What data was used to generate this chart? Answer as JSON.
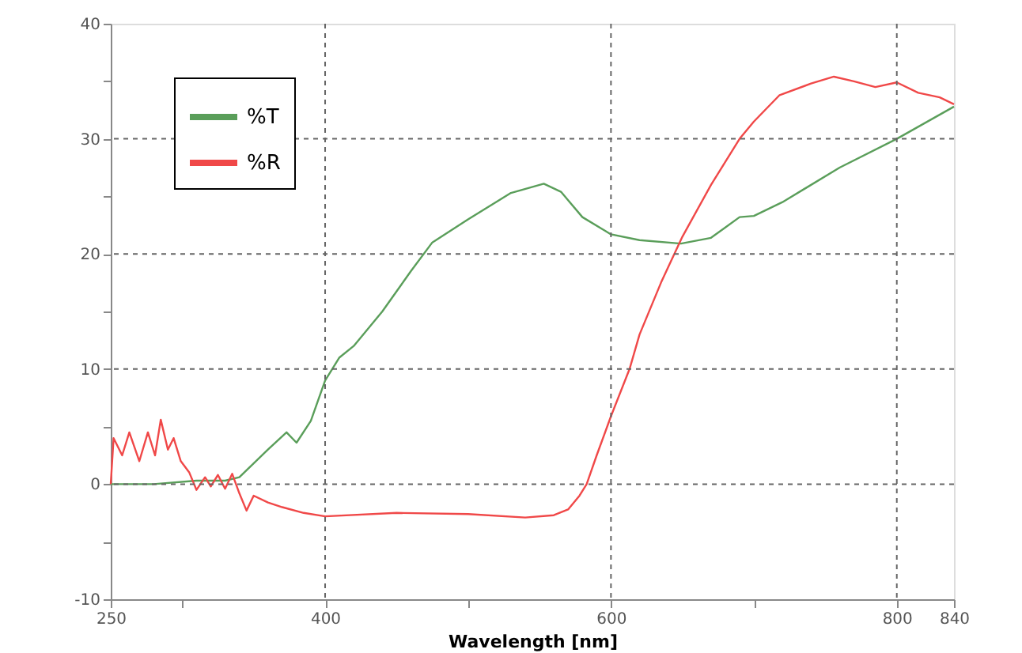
{
  "chart_data": {
    "type": "line",
    "xlabel": "Wavelength [nm]",
    "xlim": [
      250,
      840
    ],
    "ylim": [
      -10,
      40
    ],
    "xticks": [
      250,
      {
        "value": 300,
        "label": null
      },
      400,
      {
        "value": 500,
        "label": null
      },
      600,
      {
        "value": 700,
        "label": null
      },
      800,
      840
    ],
    "yticks": [
      -10,
      {
        "value": -5,
        "label": null
      },
      0,
      {
        "value": 5,
        "label": null
      },
      10,
      {
        "value": 15,
        "label": null
      },
      20,
      {
        "value": 25,
        "label": null
      },
      30,
      {
        "value": 35,
        "label": null
      },
      40
    ],
    "grid": true,
    "legend": "top left",
    "line_style": "solid",
    "marker": "none",
    "series": [
      {
        "name": "%T",
        "color": "#5a9e5a",
        "x": [
          250,
          280,
          310,
          330,
          340,
          350,
          360,
          373,
          380,
          390,
          400,
          410,
          420,
          440,
          460,
          475,
          500,
          530,
          553,
          565,
          580,
          600,
          620,
          649,
          670,
          680,
          690,
          700,
          720,
          760,
          800,
          840
        ],
        "values": [
          0,
          0,
          0.3,
          0.3,
          0.6,
          1.8,
          3.0,
          4.5,
          3.6,
          5.5,
          9.0,
          11.0,
          12.0,
          15.0,
          18.5,
          21.0,
          23.0,
          25.3,
          26.1,
          25.4,
          23.2,
          21.7,
          21.2,
          20.9,
          21.4,
          22.3,
          23.2,
          23.3,
          24.5,
          27.5,
          30.0,
          32.8
        ]
      },
      {
        "name": "%R",
        "color": "#f04848",
        "x": [
          250,
          252,
          258,
          263,
          270,
          276,
          281,
          285,
          290,
          294,
          299,
          305,
          310,
          316,
          320,
          325,
          330,
          335,
          340,
          345,
          350,
          360,
          370,
          385,
          400,
          450,
          500,
          540,
          560,
          570,
          578,
          583,
          590,
          600,
          613,
          620,
          635,
          650,
          670,
          690,
          700,
          718,
          740,
          756,
          770,
          785,
          800,
          815,
          830,
          840
        ],
        "values": [
          0,
          4.0,
          2.5,
          4.5,
          2.0,
          4.5,
          2.5,
          5.6,
          3.0,
          4.0,
          2.0,
          1.0,
          -0.5,
          0.6,
          -0.2,
          0.8,
          -0.4,
          0.9,
          -0.8,
          -2.3,
          -1.0,
          -1.6,
          -2.0,
          -2.5,
          -2.8,
          -2.5,
          -2.6,
          -2.9,
          -2.7,
          -2.2,
          -1.0,
          0,
          2.5,
          5.9,
          10.0,
          13.0,
          17.5,
          21.5,
          26.0,
          30.0,
          31.5,
          33.8,
          34.8,
          35.4,
          35.0,
          34.5,
          34.9,
          34.0,
          33.6,
          33.0
        ]
      }
    ]
  }
}
